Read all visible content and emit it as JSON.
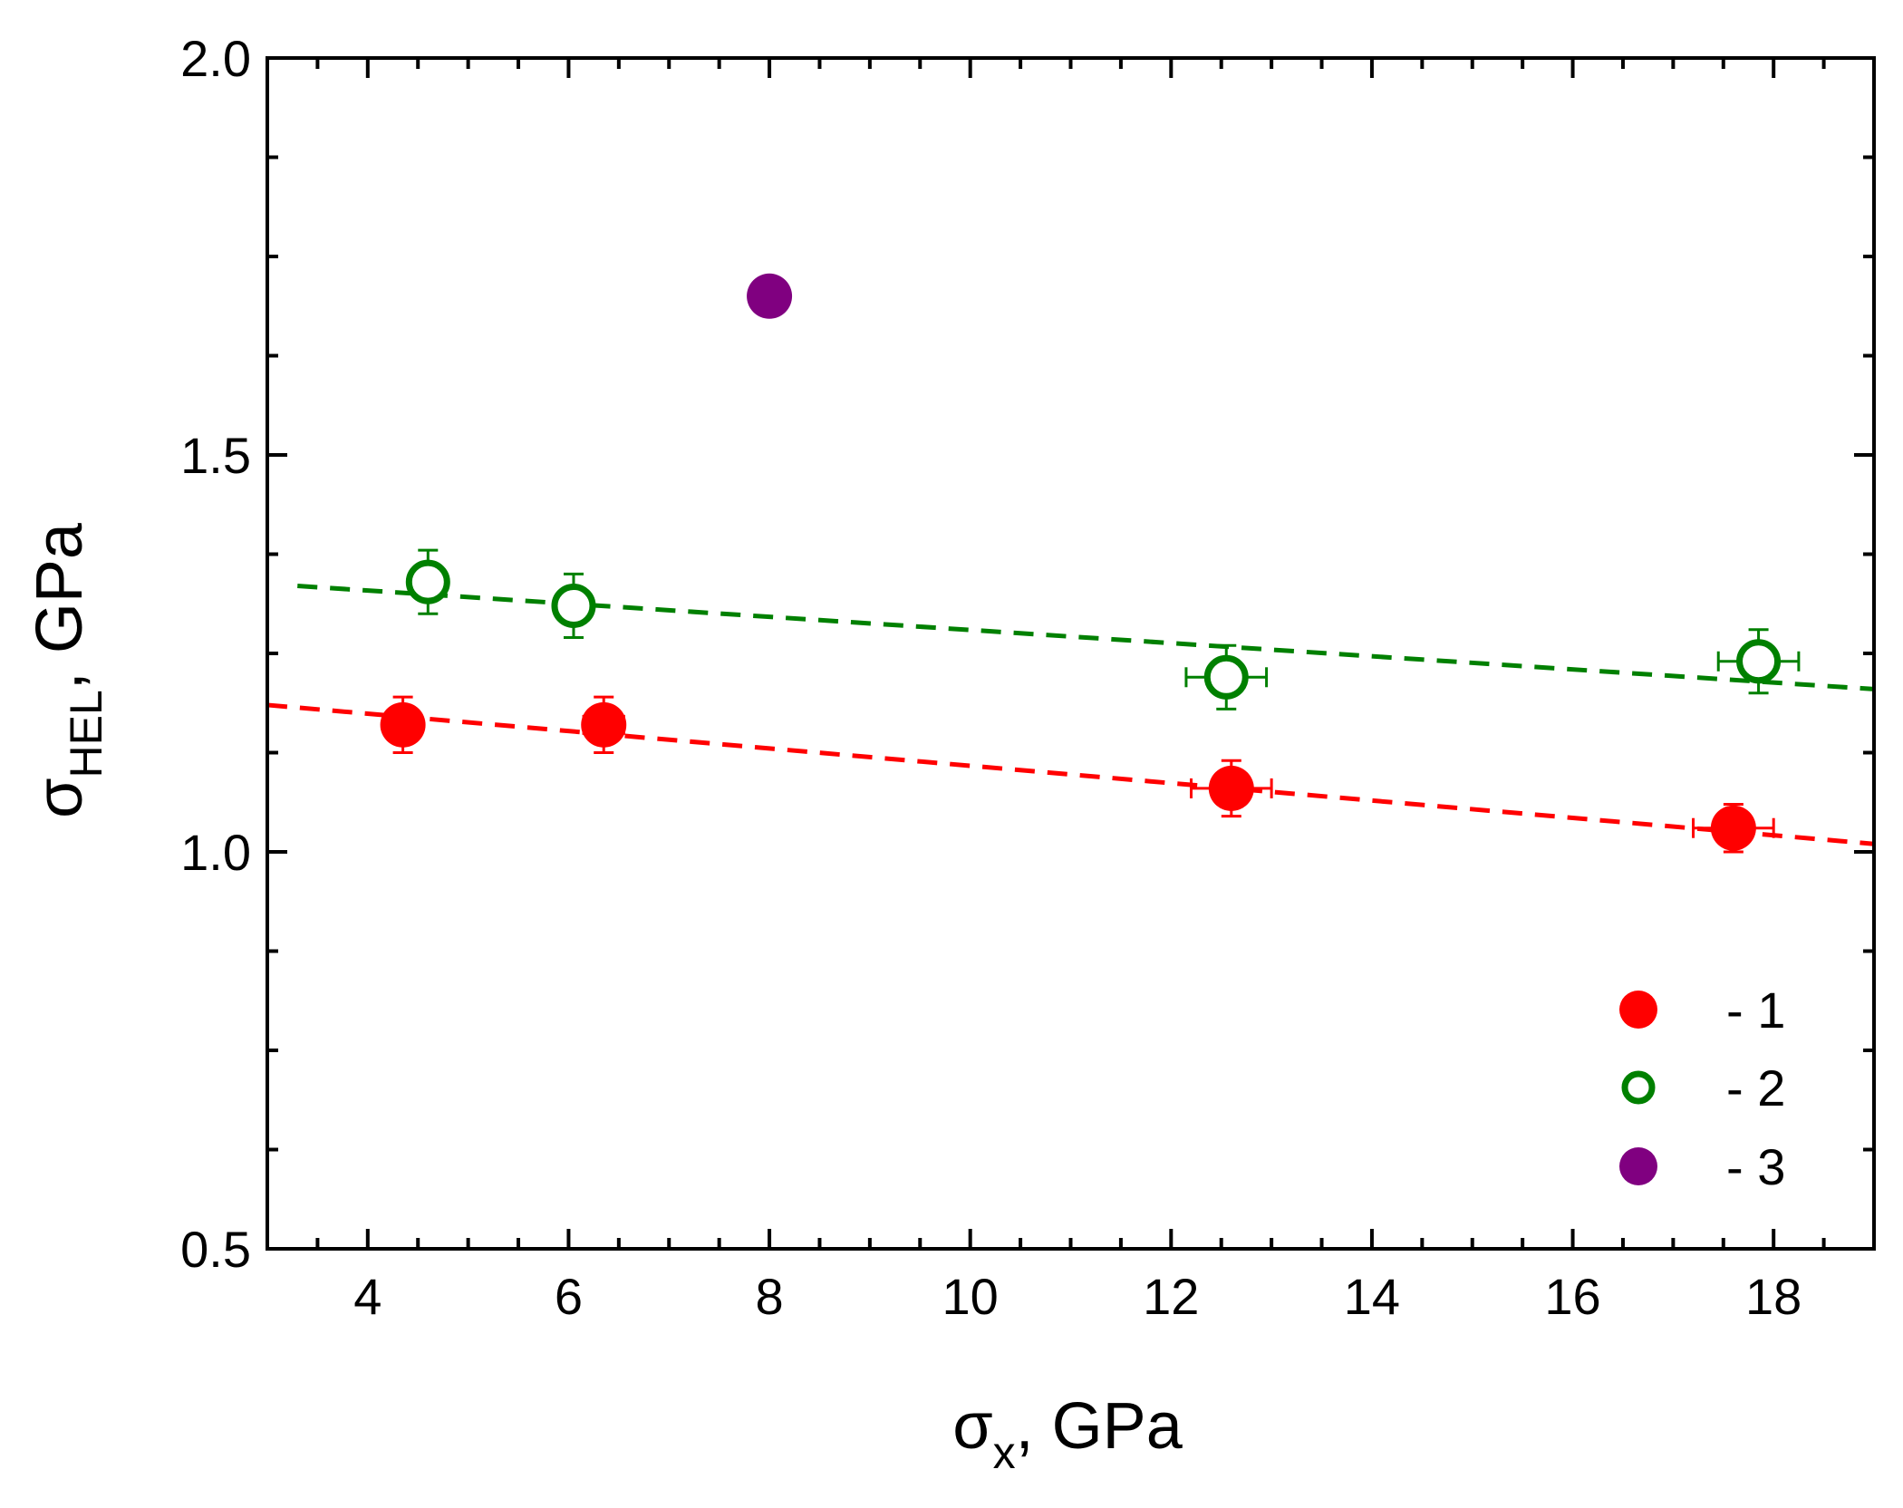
{
  "chart_data": {
    "type": "scatter",
    "title": "",
    "xlabel": {
      "main": "σ",
      "sub": "x",
      "suffix": ", GPa"
    },
    "ylabel": {
      "main": "σ",
      "sub": "HEL",
      "suffix": ", GPa"
    },
    "xlim": [
      3,
      19
    ],
    "ylim": [
      0.5,
      2.0
    ],
    "x_ticks": [
      4,
      6,
      8,
      10,
      12,
      14,
      16,
      18
    ],
    "x_tick_labels": [
      "4",
      "6",
      "8",
      "10",
      "12",
      "14",
      "16",
      "18"
    ],
    "x_minor_ticks": [
      3,
      3.5,
      4.5,
      5,
      5.5,
      6.5,
      7,
      7.5,
      8.5,
      9,
      9.5,
      10.5,
      11,
      11.5,
      12.5,
      13,
      13.5,
      14.5,
      15,
      15.5,
      16.5,
      17,
      17.5,
      18.5
    ],
    "y_ticks": [
      0.5,
      1.0,
      1.5,
      2.0
    ],
    "y_tick_labels": [
      "0.5",
      "1.0",
      "1.5",
      "2.0"
    ],
    "y_minor_ticks": [
      0.625,
      0.75,
      0.875,
      1.125,
      1.25,
      1.375,
      1.625,
      1.75,
      1.875
    ],
    "grid": false,
    "legend_position": "bottom-right",
    "series": [
      {
        "name": "1",
        "legend_label": "- 1",
        "color": "#ff0000",
        "marker": "filled-circle",
        "points": [
          {
            "x": 4.35,
            "y": 1.16,
            "xerr": 0.15,
            "yerr": 0.035
          },
          {
            "x": 6.35,
            "y": 1.16,
            "xerr": 0.2,
            "yerr": 0.035
          },
          {
            "x": 12.6,
            "y": 1.08,
            "xerr": 0.4,
            "yerr": 0.035
          },
          {
            "x": 17.6,
            "y": 1.03,
            "xerr": 0.4,
            "yerr": 0.03
          }
        ],
        "fit_line": {
          "x": [
            3,
            19
          ],
          "y": [
            1.185,
            1.01
          ],
          "style": "dashed"
        }
      },
      {
        "name": "2",
        "legend_label": "- 2",
        "color": "#008000",
        "marker": "open-circle",
        "points": [
          {
            "x": 4.6,
            "y": 1.34,
            "xerr": 0.1,
            "yerr": 0.04
          },
          {
            "x": 6.05,
            "y": 1.31,
            "xerr": 0.1,
            "yerr": 0.04
          },
          {
            "x": 12.55,
            "y": 1.22,
            "xerr": 0.4,
            "yerr": 0.04
          },
          {
            "x": 17.85,
            "y": 1.24,
            "xerr": 0.4,
            "yerr": 0.04
          }
        ],
        "fit_line": {
          "x": [
            3.3,
            19
          ],
          "y": [
            1.335,
            1.205
          ],
          "style": "dashed"
        }
      },
      {
        "name": "3",
        "legend_label": "- 3",
        "color": "#800080",
        "marker": "filled-circle",
        "points": [
          {
            "x": 8.0,
            "y": 1.7
          }
        ]
      }
    ]
  }
}
